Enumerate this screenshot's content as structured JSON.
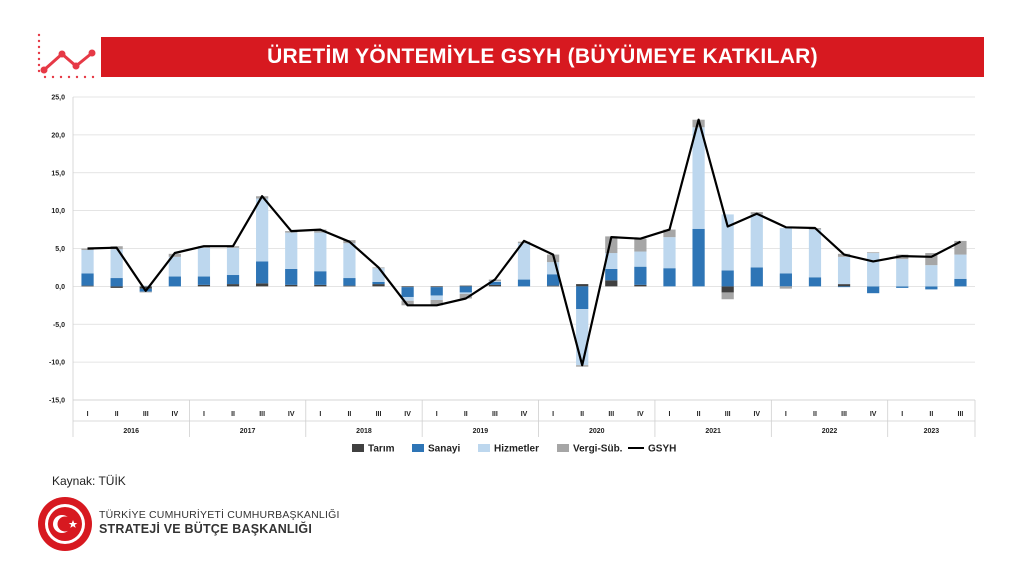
{
  "header": {
    "title": "ÜRETİM YÖNTEMİYLE GSYH (BÜYÜMEYE KATKILAR)"
  },
  "footer": {
    "source": "Kaynak: TÜİK",
    "org_line1": "TÜRKİYE CUMHURİYETİ CUMHURBAŞKANLIĞI",
    "org_line2": "STRATEJİ VE BÜTÇE BAŞKANLIĞI"
  },
  "colors": {
    "brand_red": "#d71920"
  },
  "icons": {
    "header_logo": "trend-line-icon",
    "seal": "presidency-seal-icon"
  },
  "chart_data": {
    "type": "bar",
    "stacked": true,
    "ylim": [
      -15,
      25
    ],
    "yticks": [
      "-15,0",
      "-10,0",
      "-5,0",
      "0,0",
      "5,0",
      "10,0",
      "15,0",
      "20,0",
      "25,0"
    ],
    "ytick_values": [
      -15,
      -10,
      -5,
      0,
      5,
      10,
      15,
      20,
      25
    ],
    "grid": true,
    "legend_position": "bottom",
    "years": [
      {
        "label": "2016",
        "quarters": [
          "I",
          "II",
          "III",
          "IV"
        ]
      },
      {
        "label": "2017",
        "quarters": [
          "I",
          "II",
          "III",
          "IV"
        ]
      },
      {
        "label": "2018",
        "quarters": [
          "I",
          "II",
          "III",
          "IV"
        ]
      },
      {
        "label": "2019",
        "quarters": [
          "I",
          "II",
          "III",
          "IV"
        ]
      },
      {
        "label": "2020",
        "quarters": [
          "I",
          "II",
          "III",
          "IV"
        ]
      },
      {
        "label": "2021",
        "quarters": [
          "I",
          "II",
          "III",
          "IV"
        ]
      },
      {
        "label": "2022",
        "quarters": [
          "I",
          "II",
          "III",
          "IV"
        ]
      },
      {
        "label": "2023",
        "quarters": [
          "I",
          "II",
          "III"
        ]
      }
    ],
    "series": [
      {
        "name": "Tarım",
        "color": "#404040",
        "kind": "bar",
        "values": [
          0.1,
          -0.2,
          -0.3,
          0.0,
          0.2,
          0.3,
          0.4,
          0.2,
          0.2,
          0.1,
          0.3,
          -0.1,
          -0.1,
          0.1,
          0.2,
          0.0,
          0.1,
          0.3,
          0.8,
          0.2,
          0.0,
          0.0,
          -0.8,
          0.0,
          0.0,
          0.0,
          0.3,
          0.0,
          0.0,
          0.0,
          0.0
        ]
      },
      {
        "name": "Sanayi",
        "color": "#2e75b6",
        "kind": "bar",
        "values": [
          1.6,
          1.1,
          -0.4,
          1.3,
          1.1,
          1.2,
          2.9,
          2.1,
          1.8,
          1.0,
          0.3,
          -1.3,
          -1.1,
          -0.8,
          0.4,
          0.9,
          1.5,
          -3.0,
          1.5,
          2.4,
          2.4,
          7.6,
          2.1,
          2.5,
          1.7,
          1.2,
          -0.1,
          -0.9,
          -0.2,
          -0.4,
          1.0
        ]
      },
      {
        "name": "Hizmetler",
        "color": "#bdd7ee",
        "kind": "bar",
        "values": [
          3.1,
          3.8,
          0.1,
          2.6,
          3.8,
          3.6,
          8.3,
          4.8,
          5.1,
          4.6,
          1.8,
          -0.5,
          -0.6,
          -0.2,
          0.1,
          4.8,
          1.6,
          -7.4,
          2.1,
          2.0,
          4.1,
          13.4,
          7.4,
          7.0,
          6.0,
          6.3,
          3.6,
          4.4,
          3.6,
          2.8,
          3.2
        ]
      },
      {
        "name": "Vergi-Süb.",
        "color": "#a6a6a6",
        "kind": "bar",
        "values": [
          0.2,
          0.4,
          -0.1,
          0.4,
          0.2,
          0.2,
          0.3,
          0.2,
          0.4,
          0.4,
          0.1,
          -0.6,
          -0.7,
          -0.6,
          0.2,
          0.2,
          1.0,
          -0.2,
          2.2,
          1.7,
          1.0,
          1.0,
          -0.9,
          0.3,
          -0.3,
          0.2,
          0.4,
          0.1,
          0.6,
          1.6,
          1.8
        ]
      },
      {
        "name": "GSYH",
        "color": "#000000",
        "kind": "line",
        "values": [
          5.0,
          5.1,
          -0.6,
          4.4,
          5.3,
          5.3,
          11.9,
          7.3,
          7.5,
          5.9,
          2.5,
          -2.5,
          -2.5,
          -1.6,
          0.9,
          6.0,
          4.2,
          -10.4,
          6.5,
          6.3,
          7.5,
          22.0,
          7.9,
          9.6,
          7.8,
          7.7,
          4.2,
          3.3,
          4.0,
          3.9,
          5.9
        ]
      }
    ]
  }
}
